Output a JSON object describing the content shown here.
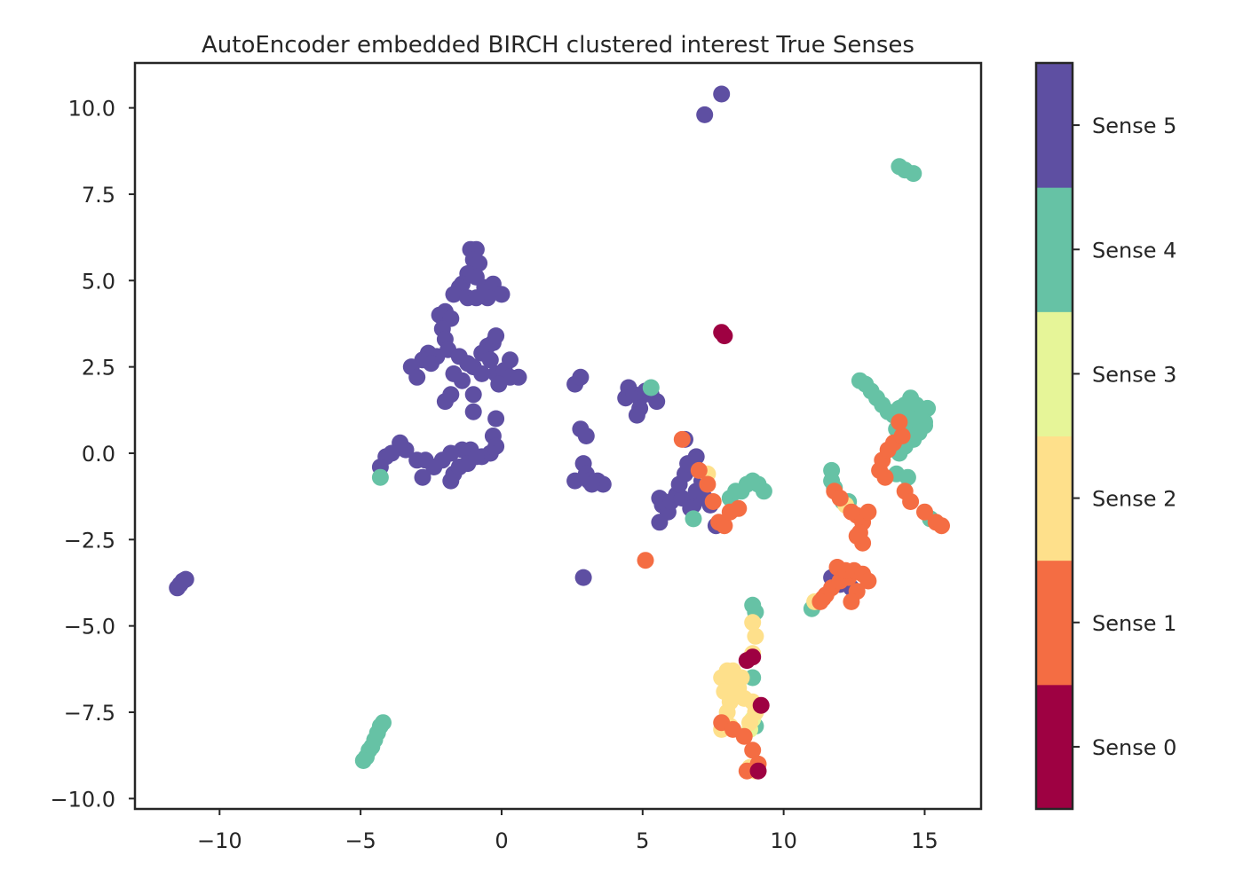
{
  "chart_data": {
    "type": "scatter",
    "title": "AutoEncoder embedded BIRCH clustered interest True Senses",
    "xlabel": "",
    "ylabel": "",
    "xlim": [
      -13,
      17
    ],
    "ylim": [
      -10.3,
      11.3
    ],
    "xticks": [
      -10,
      -5,
      0,
      5,
      10,
      15
    ],
    "xtick_labels": [
      "−10",
      "−5",
      "0",
      "5",
      "10",
      "15"
    ],
    "yticks": [
      -10,
      -7.5,
      -5,
      -2.5,
      0,
      2.5,
      5,
      7.5,
      10
    ],
    "ytick_labels": [
      "−10.0",
      "−7.5",
      "−5.0",
      "−2.5",
      "0.0",
      "2.5",
      "5.0",
      "7.5",
      "10.0"
    ],
    "grid": false,
    "legend": "colorbar-right",
    "colorbar": {
      "labels": [
        "Sense 0",
        "Sense 1",
        "Sense 2",
        "Sense 3",
        "Sense 4",
        "Sense 5"
      ],
      "colors": [
        "#9e0142",
        "#f46d43",
        "#fee08b",
        "#e6f598",
        "#66c2a5",
        "#5e4fa2"
      ]
    },
    "series": [
      {
        "sense": 5,
        "color": "#5e4fa2",
        "points": [
          [
            7.8,
            10.4
          ],
          [
            7.2,
            9.8
          ],
          [
            -11.5,
            -3.9
          ],
          [
            -11.4,
            -3.8
          ],
          [
            -11.3,
            -3.7
          ],
          [
            -11.2,
            -3.65
          ],
          [
            -1.1,
            5.9
          ],
          [
            -0.9,
            5.9
          ],
          [
            -1.0,
            5.6
          ],
          [
            -0.8,
            5.5
          ],
          [
            -1.2,
            5.2
          ],
          [
            -0.9,
            5.1
          ],
          [
            -1.4,
            4.9
          ],
          [
            -1.5,
            4.8
          ],
          [
            -1.7,
            4.6
          ],
          [
            -0.6,
            4.8
          ],
          [
            -0.3,
            4.9
          ],
          [
            0.0,
            4.6
          ],
          [
            -0.5,
            4.5
          ],
          [
            -1.2,
            4.5
          ],
          [
            -0.9,
            4.5
          ],
          [
            -2.0,
            4.1
          ],
          [
            -2.2,
            4.0
          ],
          [
            -1.8,
            3.9
          ],
          [
            -2.1,
            3.6
          ],
          [
            -2.0,
            3.3
          ],
          [
            -1.9,
            3.0
          ],
          [
            -2.3,
            2.8
          ],
          [
            -2.6,
            2.9
          ],
          [
            -2.8,
            2.7
          ],
          [
            -2.5,
            2.6
          ],
          [
            -3.2,
            2.5
          ],
          [
            -3.0,
            2.2
          ],
          [
            -1.5,
            2.8
          ],
          [
            -1.2,
            2.6
          ],
          [
            -1.0,
            2.5
          ],
          [
            -1.7,
            2.3
          ],
          [
            -1.4,
            2.1
          ],
          [
            -1.8,
            1.7
          ],
          [
            -2.0,
            1.5
          ],
          [
            -1.0,
            1.7
          ],
          [
            -0.7,
            2.9
          ],
          [
            -0.5,
            3.1
          ],
          [
            -0.3,
            3.2
          ],
          [
            -0.2,
            3.4
          ],
          [
            -0.4,
            2.7
          ],
          [
            -0.2,
            2.3
          ],
          [
            0.1,
            2.4
          ],
          [
            0.3,
            2.2
          ],
          [
            0.6,
            2.2
          ],
          [
            -0.7,
            2.3
          ],
          [
            -0.1,
            2.0
          ],
          [
            0.3,
            2.7
          ],
          [
            -1.0,
            1.2
          ],
          [
            -0.2,
            1.0
          ],
          [
            -0.3,
            0.5
          ],
          [
            -0.2,
            0.2
          ],
          [
            -0.4,
            0.0
          ],
          [
            -0.7,
            -0.1
          ],
          [
            -1.1,
            0.1
          ],
          [
            -1.4,
            0.1
          ],
          [
            -1.8,
            0.0
          ],
          [
            -2.1,
            -0.2
          ],
          [
            -2.4,
            -0.4
          ],
          [
            -2.7,
            -0.2
          ],
          [
            -3.0,
            -0.2
          ],
          [
            -3.4,
            0.1
          ],
          [
            -3.6,
            0.3
          ],
          [
            -3.9,
            0.0
          ],
          [
            -4.1,
            -0.1
          ],
          [
            -4.3,
            -0.4
          ],
          [
            -2.8,
            -0.7
          ],
          [
            -1.8,
            -0.8
          ],
          [
            -1.7,
            -0.6
          ],
          [
            -1.5,
            -0.4
          ],
          [
            -1.2,
            -0.3
          ],
          [
            -0.9,
            -0.1
          ],
          [
            2.6,
            2.0
          ],
          [
            2.8,
            2.2
          ],
          [
            2.8,
            0.7
          ],
          [
            3.0,
            0.5
          ],
          [
            2.9,
            -0.3
          ],
          [
            3.0,
            -0.6
          ],
          [
            2.6,
            -0.8
          ],
          [
            3.1,
            -0.8
          ],
          [
            3.4,
            -0.8
          ],
          [
            3.6,
            -0.9
          ],
          [
            3.2,
            -0.9
          ],
          [
            2.9,
            -3.6
          ],
          [
            4.5,
            1.9
          ],
          [
            4.4,
            1.6
          ],
          [
            4.7,
            1.7
          ],
          [
            4.9,
            1.6
          ],
          [
            5.1,
            1.8
          ],
          [
            5.3,
            1.7
          ],
          [
            5.5,
            1.5
          ],
          [
            4.9,
            1.3
          ],
          [
            4.8,
            1.1
          ],
          [
            5.6,
            -1.3
          ],
          [
            5.7,
            -1.5
          ],
          [
            5.9,
            -1.7
          ],
          [
            5.6,
            -2.0
          ],
          [
            6.0,
            -1.4
          ],
          [
            6.2,
            -1.2
          ],
          [
            6.4,
            -1.3
          ],
          [
            6.3,
            -0.9
          ],
          [
            6.5,
            -0.6
          ],
          [
            6.6,
            -0.3
          ],
          [
            6.9,
            -0.1
          ],
          [
            6.8,
            -1.5
          ],
          [
            6.9,
            -1.1
          ],
          [
            7.1,
            -0.8
          ],
          [
            7.2,
            -1.3
          ],
          [
            7.4,
            -1.5
          ],
          [
            7.6,
            -2.1
          ],
          [
            6.5,
            0.4
          ],
          [
            6.7,
            -1.6
          ],
          [
            11.7,
            -3.6
          ],
          [
            12.0,
            -3.8
          ],
          [
            12.1,
            -3.5
          ],
          [
            12.4,
            -3.9
          ]
        ]
      },
      {
        "sense": 4,
        "color": "#66c2a5",
        "points": [
          [
            14.1,
            8.3
          ],
          [
            14.3,
            8.2
          ],
          [
            14.6,
            8.1
          ],
          [
            -4.8,
            -8.8
          ],
          [
            -4.7,
            -8.6
          ],
          [
            -4.6,
            -8.5
          ],
          [
            -4.5,
            -8.3
          ],
          [
            -4.4,
            -8.1
          ],
          [
            -4.3,
            -7.9
          ],
          [
            -4.2,
            -7.8
          ],
          [
            -4.9,
            -8.9
          ],
          [
            -4.3,
            -0.7
          ],
          [
            12.7,
            2.1
          ],
          [
            12.9,
            2.0
          ],
          [
            13.1,
            1.8
          ],
          [
            13.3,
            1.6
          ],
          [
            13.5,
            1.4
          ],
          [
            13.7,
            1.2
          ],
          [
            13.9,
            1.1
          ],
          [
            14.1,
            1.3
          ],
          [
            14.3,
            1.4
          ],
          [
            14.5,
            1.6
          ],
          [
            14.7,
            1.4
          ],
          [
            14.9,
            1.2
          ],
          [
            15.1,
            1.3
          ],
          [
            15.0,
            0.9
          ],
          [
            14.8,
            0.6
          ],
          [
            14.6,
            0.4
          ],
          [
            14.3,
            0.2
          ],
          [
            14.1,
            0.0
          ],
          [
            14.0,
            0.7
          ],
          [
            14.2,
            0.5
          ],
          [
            14.5,
            0.8
          ],
          [
            15.0,
            0.8
          ],
          [
            14.8,
            1.1
          ],
          [
            14.5,
            1.0
          ],
          [
            14.0,
            -0.6
          ],
          [
            14.4,
            -0.7
          ],
          [
            11.7,
            -0.5
          ],
          [
            11.7,
            -0.8
          ],
          [
            11.8,
            -1.0
          ],
          [
            12.1,
            -1.4
          ],
          [
            12.3,
            -1.4
          ],
          [
            15.2,
            -1.9
          ],
          [
            8.1,
            -1.3
          ],
          [
            8.3,
            -1.1
          ],
          [
            8.5,
            -1.1
          ],
          [
            8.7,
            -0.9
          ],
          [
            8.9,
            -0.8
          ],
          [
            9.1,
            -0.9
          ],
          [
            9.3,
            -1.1
          ],
          [
            8.3,
            -1.6
          ],
          [
            8.9,
            -4.4
          ],
          [
            9.0,
            -4.6
          ],
          [
            11.0,
            -4.5
          ],
          [
            6.8,
            -1.9
          ],
          [
            5.3,
            1.9
          ],
          [
            8.9,
            -6.5
          ],
          [
            9.0,
            -7.9
          ]
        ]
      },
      {
        "sense": 3,
        "color": "#e6f598",
        "points": [
          [
            8.9,
            -7.7
          ],
          [
            8.8,
            -8.0
          ]
        ]
      },
      {
        "sense": 2,
        "color": "#fee08b",
        "points": [
          [
            8.9,
            -4.9
          ],
          [
            9.0,
            -5.3
          ],
          [
            8.9,
            -5.8
          ],
          [
            7.8,
            -6.5
          ],
          [
            8.0,
            -6.3
          ],
          [
            8.2,
            -6.6
          ],
          [
            7.9,
            -6.9
          ],
          [
            8.1,
            -7.2
          ],
          [
            8.3,
            -7.0
          ],
          [
            8.0,
            -7.5
          ],
          [
            7.9,
            -7.8
          ],
          [
            8.1,
            -7.9
          ],
          [
            7.8,
            -8.0
          ],
          [
            8.4,
            -6.8
          ],
          [
            8.6,
            -7.1
          ],
          [
            8.5,
            -6.5
          ],
          [
            8.2,
            -6.3
          ],
          [
            8.9,
            -7.2
          ],
          [
            9.0,
            -7.5
          ],
          [
            8.8,
            -7.8
          ],
          [
            9.0,
            -9.2
          ],
          [
            8.8,
            -9.1
          ],
          [
            12.2,
            -1.5
          ],
          [
            11.1,
            -4.3
          ],
          [
            7.3,
            -0.6
          ]
        ]
      },
      {
        "sense": 1,
        "color": "#f46d43",
        "points": [
          [
            6.4,
            0.4
          ],
          [
            7.0,
            -0.5
          ],
          [
            7.3,
            -0.9
          ],
          [
            7.5,
            -1.4
          ],
          [
            7.7,
            -2.0
          ],
          [
            7.9,
            -2.1
          ],
          [
            8.1,
            -1.7
          ],
          [
            8.4,
            -1.6
          ],
          [
            5.1,
            -3.1
          ],
          [
            11.8,
            -1.1
          ],
          [
            12.0,
            -1.3
          ],
          [
            12.4,
            -1.7
          ],
          [
            12.6,
            -1.8
          ],
          [
            12.8,
            -2.0
          ],
          [
            13.0,
            -1.7
          ],
          [
            12.7,
            -2.3
          ],
          [
            12.8,
            -2.6
          ],
          [
            12.6,
            -2.4
          ],
          [
            13.4,
            -0.5
          ],
          [
            13.6,
            -0.7
          ],
          [
            13.5,
            -0.2
          ],
          [
            13.7,
            0.1
          ],
          [
            13.9,
            0.3
          ],
          [
            14.2,
            0.5
          ],
          [
            14.3,
            -1.1
          ],
          [
            14.5,
            -1.4
          ],
          [
            15.0,
            -1.7
          ],
          [
            15.4,
            -2.0
          ],
          [
            15.6,
            -2.1
          ],
          [
            14.1,
            0.9
          ],
          [
            11.4,
            -4.2
          ],
          [
            11.7,
            -3.9
          ],
          [
            12.0,
            -3.7
          ],
          [
            12.3,
            -3.6
          ],
          [
            11.9,
            -3.3
          ],
          [
            12.2,
            -3.4
          ],
          [
            12.5,
            -3.4
          ],
          [
            12.8,
            -3.5
          ],
          [
            13.0,
            -3.7
          ],
          [
            12.6,
            -4.0
          ],
          [
            12.4,
            -4.3
          ],
          [
            11.5,
            -4.1
          ],
          [
            11.3,
            -4.3
          ],
          [
            7.8,
            -7.8
          ],
          [
            8.2,
            -8.0
          ],
          [
            8.9,
            -8.6
          ],
          [
            9.1,
            -9.0
          ],
          [
            8.7,
            -9.2
          ],
          [
            8.6,
            -8.2
          ]
        ]
      },
      {
        "sense": 0,
        "color": "#9e0142",
        "points": [
          [
            7.8,
            3.5
          ],
          [
            7.9,
            3.4
          ],
          [
            9.2,
            -7.3
          ],
          [
            9.1,
            -9.2
          ],
          [
            8.9,
            -5.9
          ],
          [
            8.7,
            -6.0
          ]
        ]
      }
    ]
  }
}
